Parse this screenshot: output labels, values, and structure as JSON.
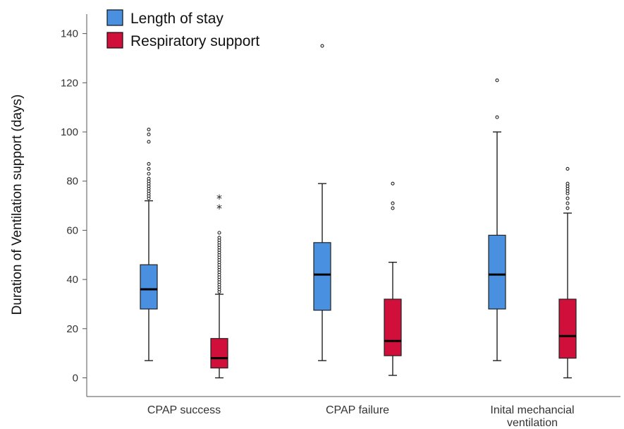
{
  "chart_data": {
    "type": "box",
    "ylabel": "Duration of Ventilation support (days)",
    "xlabel": "",
    "ylim": [
      -8,
      150
    ],
    "yticks": [
      0,
      20,
      40,
      60,
      80,
      100,
      120,
      140
    ],
    "categories": [
      [
        "CPAP success"
      ],
      [
        "CPAP failure"
      ],
      [
        "Inital mechancial",
        "ventilation"
      ]
    ],
    "legend_position": "top-left",
    "series": [
      {
        "name": "Length of stay",
        "color": "#4a90e0",
        "boxes": [
          {
            "min": 7,
            "q1": 28,
            "median": 36,
            "q3": 46,
            "max": 72,
            "outliers": [
              73,
              74,
              75,
              76,
              77,
              78,
              79,
              80,
              81,
              83,
              85,
              87,
              96,
              99,
              101
            ],
            "extremes": []
          },
          {
            "min": 7,
            "q1": 27.5,
            "median": 42,
            "q3": 55,
            "max": 79,
            "outliers": [
              135
            ],
            "extremes": []
          },
          {
            "min": 7,
            "q1": 28,
            "median": 42,
            "q3": 58,
            "max": 100,
            "outliers": [
              106,
              121
            ],
            "extremes": []
          }
        ]
      },
      {
        "name": "Respiratory support",
        "color": "#d0103a",
        "boxes": [
          {
            "min": 0,
            "q1": 4,
            "median": 8,
            "q3": 16,
            "max": 34,
            "outliers": [
              35,
              36,
              37,
              38,
              39,
              40,
              41,
              42,
              43,
              44,
              45,
              46,
              47,
              48,
              49,
              50,
              51,
              52,
              53,
              54,
              55,
              56,
              57,
              59
            ],
            "extremes": [
              69,
              73
            ]
          },
          {
            "min": 1,
            "q1": 9,
            "median": 15,
            "q3": 32,
            "max": 47,
            "outliers": [
              69,
              71,
              79
            ],
            "extremes": []
          },
          {
            "min": 0,
            "q1": 8,
            "median": 17,
            "q3": 32,
            "max": 67,
            "outliers": [
              69,
              71,
              73,
              75,
              76,
              77,
              78,
              79,
              85
            ],
            "extremes": []
          }
        ]
      }
    ]
  }
}
